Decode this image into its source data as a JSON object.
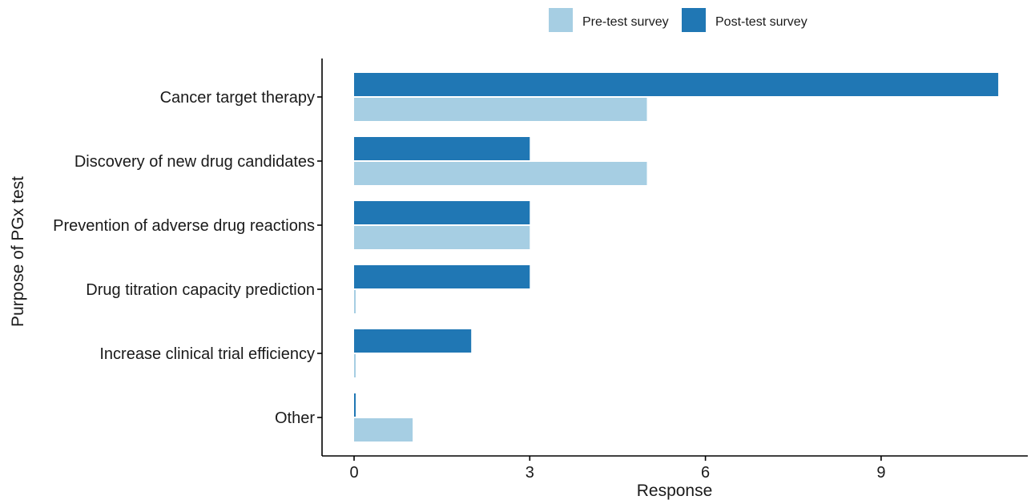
{
  "chart_data": {
    "type": "bar",
    "orientation": "horizontal",
    "categories": [
      "Cancer target therapy",
      "Discovery of new drug candidates",
      "Prevention of adverse drug reactions",
      "Drug titration capacity prediction",
      "Increase clinical trial efficiency",
      "Other"
    ],
    "series": [
      {
        "name": "Post-test survey",
        "color": "#2077b4",
        "values": [
          11,
          3,
          3,
          3,
          2,
          0
        ]
      },
      {
        "name": "Pre-test survey",
        "color": "#a6cee3",
        "values": [
          5,
          5,
          3,
          0,
          0,
          1
        ]
      }
    ],
    "xlabel": "Response",
    "ylabel": "Purpose of PGx test",
    "xticks": [
      0,
      3,
      6,
      9
    ],
    "xlim": [
      -0.55,
      11.5
    ],
    "legend_position": "top",
    "legend_order": [
      "Pre-test survey",
      "Post-test survey"
    ],
    "grid": false
  }
}
